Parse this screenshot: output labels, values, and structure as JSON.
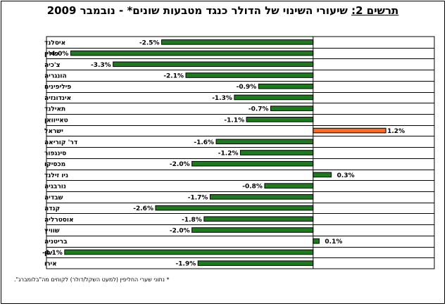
{
  "chart_data": {
    "type": "bar",
    "orientation": "horizontal",
    "title_prefix": "תרשים 2:",
    "title": "שיעורי השינוי של הדולר כנגד מטבעות שונים* - נובמבר 2009",
    "footnote": "* נתוני שערי החליפין (למעט השקל/דולר) לקוחים מה\"בלומברג\".",
    "categories": [
      "איסלנד",
      "פולין",
      "צ'כיה",
      "הונגריה",
      "פיליפינים",
      "אינדונזיה",
      "תאילנד",
      "טאייוואן",
      "ישראל",
      "דר' קוריאה",
      "סינגפור",
      "מכסיקו",
      "ניו זילנד",
      "נורבגיה",
      "שבדיה",
      "קנדה",
      "אוסטרליה",
      "שוויץ",
      "בריטניה",
      "יפן",
      "אירו"
    ],
    "values": [
      -2.5,
      -4.0,
      -3.3,
      -2.1,
      -0.9,
      -1.3,
      -0.7,
      -1.1,
      1.2,
      -1.6,
      -1.2,
      -2.0,
      0.3,
      -0.8,
      -1.7,
      -2.6,
      -1.8,
      -2.0,
      0.1,
      -4.1,
      -1.9
    ],
    "value_labels": [
      "-2.5%",
      "-4.0%",
      "-3.3%",
      "-2.1%",
      "-0.9%",
      "-1.3%",
      "-0.7%",
      "-1.1%",
      "1.2%",
      "-1.6%",
      "-1.2%",
      "-2.0%",
      "0.3%",
      "-0.8%",
      "-1.7%",
      "-2.6%",
      "-1.8%",
      "-2.0%",
      "0.1%",
      "-4.1%",
      "-1.9%"
    ],
    "highlight_category": "ישראל",
    "colors": {
      "bar": "#1e7a1e",
      "highlight": "#ff6a1a",
      "bar_outline": "#000000",
      "grid": "#000000"
    },
    "xlim": [
      -4.4,
      2.0
    ],
    "grid": true,
    "legend": "none"
  }
}
